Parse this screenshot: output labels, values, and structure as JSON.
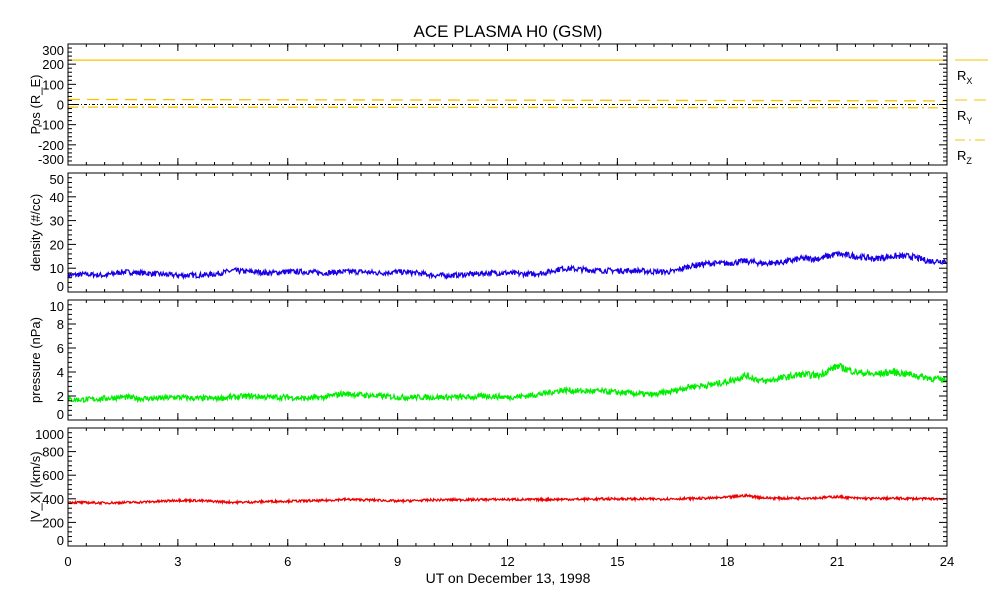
{
  "chart_data": {
    "type": "line",
    "title": "ACE PLASMA H0 (GSM)",
    "xlabel": "UT on December 13, 1998",
    "xlim": [
      0,
      24
    ],
    "xticks": [
      "0",
      "3",
      "6",
      "9",
      "12",
      "15",
      "18",
      "21",
      "24"
    ],
    "x": [
      0,
      0.5,
      1,
      1.5,
      2,
      2.5,
      3,
      3.5,
      4,
      4.5,
      5,
      5.5,
      6,
      6.5,
      7,
      7.5,
      8,
      8.5,
      9,
      9.5,
      10,
      10.5,
      11,
      11.5,
      12,
      12.5,
      13,
      13.5,
      14,
      14.5,
      15,
      15.5,
      16,
      16.5,
      17,
      17.5,
      18,
      18.5,
      19,
      19.5,
      20,
      20.5,
      21,
      21.5,
      22,
      22.5,
      23,
      23.5,
      24
    ],
    "panels": [
      {
        "ylabel": "Pos (R_E)",
        "ylabel_main": "Pos (R",
        "ylabel_sub": "E",
        "ylim": [
          -300,
          300
        ],
        "yticks": [
          "-300",
          "-200",
          "-100",
          "0",
          "100",
          "200",
          "300"
        ],
        "zero_line": true,
        "series": [
          {
            "name": "R_X",
            "label_main": "R",
            "label_sub": "X",
            "color": "#f5c400",
            "dash": "solid",
            "const": 220
          },
          {
            "name": "R_Y",
            "label_main": "R",
            "label_sub": "Y",
            "color": "#f5c400",
            "dash": "dashed",
            "start": 25,
            "end": 18
          },
          {
            "name": "R_Z",
            "label_main": "R",
            "label_sub": "Z",
            "color": "#f5c400",
            "dash": "dashdot",
            "start": -13,
            "end": -16
          }
        ]
      },
      {
        "ylabel": "density (#/cc)",
        "ylim": [
          0,
          50
        ],
        "yticks": [
          "0",
          "10",
          "20",
          "30",
          "40",
          "50"
        ],
        "color": "#1a00e6",
        "values": [
          7,
          7.5,
          7,
          8.5,
          8,
          7.5,
          7,
          7,
          7.5,
          9,
          8.5,
          8,
          8.5,
          8.5,
          8,
          8.5,
          8.5,
          8,
          8.5,
          8,
          7,
          7,
          7.5,
          8,
          8,
          7.5,
          8,
          10,
          9.5,
          9,
          9,
          9,
          8.5,
          8.5,
          11,
          12,
          12,
          13,
          12,
          12.5,
          14,
          14,
          16,
          15,
          14,
          15,
          15,
          13,
          13
        ]
      },
      {
        "ylabel": "pressure (nPa)",
        "ylim": [
          0,
          10
        ],
        "yticks": [
          "0",
          "2",
          "4",
          "6",
          "8",
          "10"
        ],
        "color": "#00ee00",
        "values": [
          1.7,
          1.7,
          1.8,
          1.9,
          1.8,
          1.8,
          1.9,
          1.8,
          1.8,
          1.9,
          2.0,
          1.9,
          1.9,
          1.8,
          1.9,
          2.2,
          2.1,
          2.0,
          1.9,
          1.9,
          1.9,
          1.9,
          1.9,
          2.0,
          1.9,
          2.0,
          2.2,
          2.5,
          2.4,
          2.4,
          2.3,
          2.2,
          2.1,
          2.4,
          2.8,
          2.9,
          3.2,
          3.7,
          3.2,
          3.5,
          3.8,
          3.7,
          4.5,
          4.0,
          3.8,
          4.0,
          3.8,
          3.5,
          3.3
        ]
      },
      {
        "ylabel": "|V_X| (km/s)",
        "ylabel_pre": "|V",
        "ylabel_sub": "X",
        "ylabel_post": "| (km/s)",
        "ylim": [
          0,
          1000
        ],
        "yticks": [
          "0",
          "200",
          "400",
          "600",
          "800",
          "1000"
        ],
        "color": "#ee0000",
        "values": [
          370,
          368,
          365,
          368,
          372,
          378,
          388,
          385,
          378,
          370,
          372,
          378,
          380,
          382,
          385,
          395,
          392,
          388,
          380,
          385,
          390,
          392,
          392,
          394,
          395,
          393,
          394,
          396,
          396,
          398,
          400,
          398,
          398,
          400,
          402,
          405,
          412,
          428,
          408,
          404,
          406,
          408,
          418,
          405,
          402,
          404,
          402,
          400,
          400
        ]
      }
    ]
  }
}
